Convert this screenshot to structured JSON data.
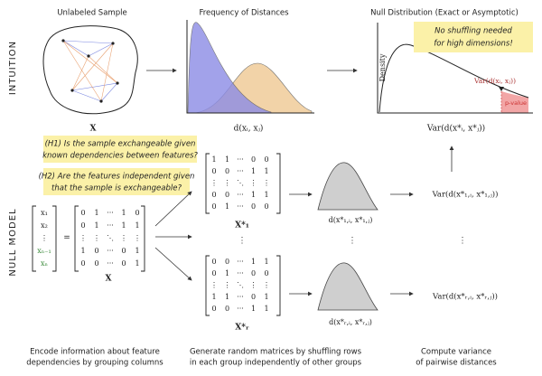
{
  "sections": {
    "intuition": "INTUITION",
    "null_model": "NULL MODEL"
  },
  "intuition": {
    "sample": {
      "title": "Unlabeled Sample",
      "label": "X"
    },
    "frequency": {
      "title": "Frequency of Distances",
      "label": "d(xᵢ, xⱼ)"
    },
    "null": {
      "title": "Null Distribution (Exact or Asymptotic)",
      "label": "Var(d(x*ᵢ, x*ⱼ))",
      "y_label": "Density",
      "note": [
        "No shuffling needed",
        "for high dimensions!"
      ],
      "annotation": "Var(d(xᵢ, xⱼ))",
      "p_value": "p-value"
    }
  },
  "questions": [
    [
      "(H1) Is the sample exchangeable given",
      "known dependencies between features?"
    ],
    [
      "(H2) Are the features independent given",
      "that the sample is exchangeable?"
    ]
  ],
  "model": {
    "vector": [
      "x₁",
      "x₂",
      "⋮",
      "xₙ₋₁",
      "xₙ"
    ],
    "equals": "=",
    "matrix": [
      [
        "0",
        "1",
        "···",
        "1",
        "0"
      ],
      [
        "0",
        "1",
        "···",
        "1",
        "1"
      ],
      [
        "⋮",
        "⋮",
        "⋱",
        "⋮",
        "⋮"
      ],
      [
        "1",
        "0",
        "···",
        "0",
        "1"
      ],
      [
        "0",
        "0",
        "···",
        "0",
        "1"
      ]
    ],
    "label": "X"
  },
  "ellipsis": "⋮",
  "shuffled": [
    {
      "matrix": [
        [
          "1",
          "1",
          "···",
          "0",
          "0"
        ],
        [
          "0",
          "0",
          "···",
          "1",
          "1"
        ],
        [
          "⋮",
          "⋮",
          "⋱",
          "⋮",
          "⋮"
        ],
        [
          "0",
          "0",
          "···",
          "1",
          "1"
        ],
        [
          "0",
          "1",
          "···",
          "0",
          "0"
        ]
      ],
      "label": "X*₁",
      "distance": "d(x*₁,ᵢ, x*₁,ⱼ)",
      "variance": "Var(d(x*₁,ᵢ, x*₁,ⱼ))"
    },
    {
      "matrix": [
        [
          "0",
          "0",
          "···",
          "1",
          "1"
        ],
        [
          "0",
          "1",
          "···",
          "0",
          "0"
        ],
        [
          "⋮",
          "⋮",
          "⋱",
          "⋮",
          "⋮"
        ],
        [
          "1",
          "1",
          "···",
          "0",
          "1"
        ],
        [
          "0",
          "0",
          "···",
          "1",
          "1"
        ]
      ],
      "label": "X*ᵣ",
      "distance": "d(x*ᵣ,ᵢ, x*ᵣ,ⱼ)",
      "variance": "Var(d(x*ᵣ,ᵢ, x*ᵣ,ⱼ))"
    }
  ],
  "captions": [
    [
      "Encode information about feature",
      "dependencies by grouping columns"
    ],
    [
      "Generate random matrices by shuffling rows",
      "in each group independently of other groups"
    ],
    [
      "Compute variance",
      "of pairwise distances"
    ]
  ]
}
